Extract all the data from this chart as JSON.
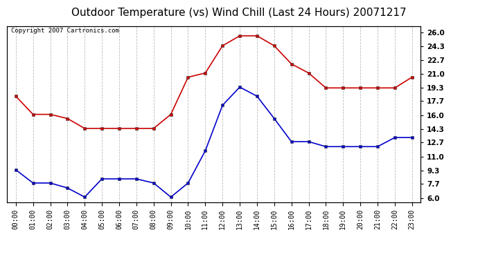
{
  "title": "Outdoor Temperature (vs) Wind Chill (Last 24 Hours) 20071217",
  "copyright": "Copyright 2007 Cartronics.com",
  "x_labels": [
    "00:00",
    "01:00",
    "02:00",
    "03:00",
    "04:00",
    "05:00",
    "06:00",
    "07:00",
    "08:00",
    "09:00",
    "10:00",
    "11:00",
    "12:00",
    "13:00",
    "14:00",
    "15:00",
    "16:00",
    "17:00",
    "18:00",
    "19:00",
    "20:00",
    "21:00",
    "22:00",
    "23:00"
  ],
  "temp_red": [
    18.3,
    16.1,
    16.1,
    15.6,
    14.4,
    14.4,
    14.4,
    14.4,
    14.4,
    16.1,
    20.6,
    21.1,
    24.4,
    25.6,
    25.6,
    24.4,
    22.2,
    21.1,
    19.3,
    19.3,
    19.3,
    19.3,
    19.3,
    20.6
  ],
  "wind_blue": [
    9.4,
    7.8,
    7.8,
    7.2,
    6.1,
    8.3,
    8.3,
    8.3,
    7.8,
    6.1,
    7.8,
    11.7,
    17.2,
    19.4,
    18.3,
    15.6,
    12.8,
    12.8,
    12.2,
    12.2,
    12.2,
    12.2,
    13.3,
    13.3
  ],
  "red_color": "#cc0000",
  "blue_color": "#0000cc",
  "marker": "s",
  "marker_size": 3,
  "line_width": 1.2,
  "bg_color": "#ffffff",
  "grid_color": "#bbbbbb",
  "yticks": [
    6.0,
    7.7,
    9.3,
    11.0,
    12.7,
    14.3,
    16.0,
    17.7,
    19.3,
    21.0,
    22.7,
    24.3,
    26.0
  ],
  "ylim": [
    5.5,
    26.8
  ],
  "title_fontsize": 11,
  "copyright_fontsize": 6.5
}
